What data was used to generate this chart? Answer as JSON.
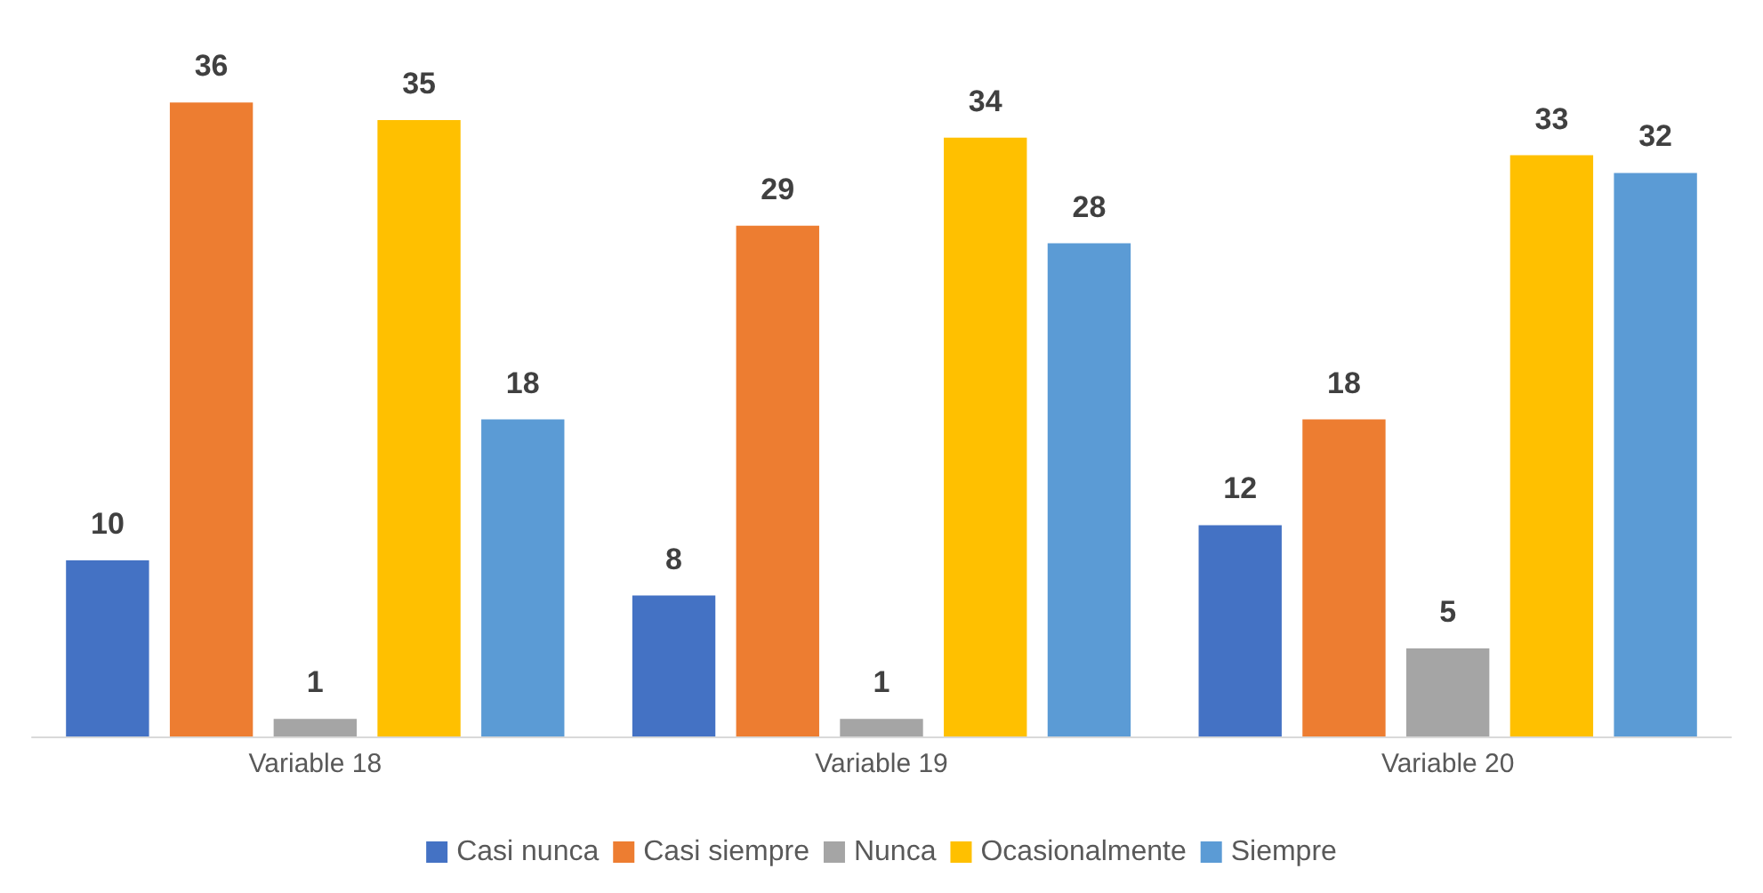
{
  "chart_data": {
    "type": "bar",
    "categories": [
      "Variable 18",
      "Variable 19",
      "Variable 20"
    ],
    "series": [
      {
        "name": "Casi nunca",
        "color": "#4472c4",
        "values": [
          10,
          8,
          12
        ]
      },
      {
        "name": "Casi siempre",
        "color": "#ed7d31",
        "values": [
          36,
          29,
          18
        ]
      },
      {
        "name": "Nunca",
        "color": "#a5a5a5",
        "values": [
          1,
          1,
          5
        ]
      },
      {
        "name": "Ocasionalmente",
        "color": "#ffc000",
        "values": [
          35,
          34,
          33
        ]
      },
      {
        "name": "Siempre",
        "color": "#5b9bd5",
        "values": [
          18,
          28,
          32
        ]
      }
    ],
    "data_labels": true,
    "legend": "bottom"
  }
}
